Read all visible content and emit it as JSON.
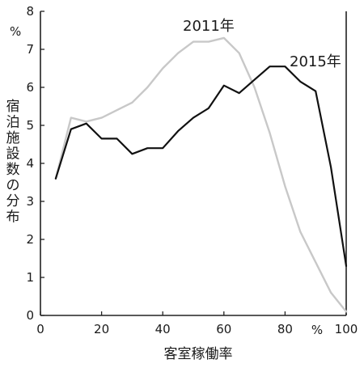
{
  "chart_data": {
    "type": "line",
    "title": "",
    "xlabel": "客室稼働率",
    "ylabel": "宿泊施設数の分布",
    "x_unit": "%",
    "y_unit": "%",
    "xlim": [
      0,
      100
    ],
    "ylim": [
      0,
      8
    ],
    "x_ticks": [
      "0",
      "20",
      "40",
      "60",
      "80",
      "100"
    ],
    "y_ticks": [
      "0",
      "1",
      "2",
      "3",
      "4",
      "5",
      "6",
      "7",
      "8"
    ],
    "grid": false,
    "legend": "labels placed next to lines",
    "series": [
      {
        "name": "2011年",
        "color": "#c8c8c8",
        "x": [
          5,
          10,
          15,
          20,
          25,
          30,
          35,
          40,
          45,
          50,
          55,
          60,
          65,
          70,
          75,
          80,
          85,
          90,
          95,
          100
        ],
        "y": [
          3.6,
          5.2,
          5.1,
          5.2,
          5.4,
          5.6,
          6.0,
          6.5,
          6.9,
          7.2,
          7.2,
          7.3,
          6.9,
          6.0,
          4.8,
          3.4,
          2.2,
          1.4,
          0.6,
          0.1
        ]
      },
      {
        "name": "2015年",
        "color": "#111111",
        "x": [
          5,
          10,
          15,
          20,
          25,
          30,
          35,
          40,
          45,
          50,
          55,
          60,
          65,
          70,
          75,
          80,
          85,
          90,
          95,
          100
        ],
        "y": [
          3.6,
          4.9,
          5.05,
          4.65,
          4.65,
          4.25,
          4.4,
          4.4,
          4.85,
          5.2,
          5.45,
          6.05,
          5.85,
          6.2,
          6.55,
          6.55,
          6.15,
          5.9,
          3.9,
          1.3
        ]
      }
    ]
  }
}
